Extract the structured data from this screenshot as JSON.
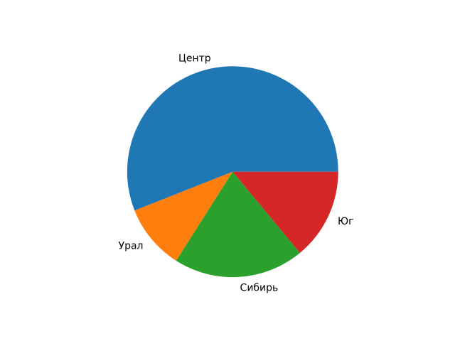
{
  "figure": {
    "background": "#ffffff"
  },
  "chart_data": {
    "type": "pie",
    "labels": [
      "Центр",
      "Урал",
      "Сибирь",
      "Юг"
    ],
    "values": [
      56,
      10,
      20,
      14
    ],
    "colors": [
      "#1f77b4",
      "#ff7f0e",
      "#2ca02c",
      "#d62728"
    ],
    "start_angle_deg": 0,
    "direction": "counterclockwise",
    "label_distance": 1.1,
    "label_color": "#000000",
    "legend": "none",
    "grid": "off"
  }
}
